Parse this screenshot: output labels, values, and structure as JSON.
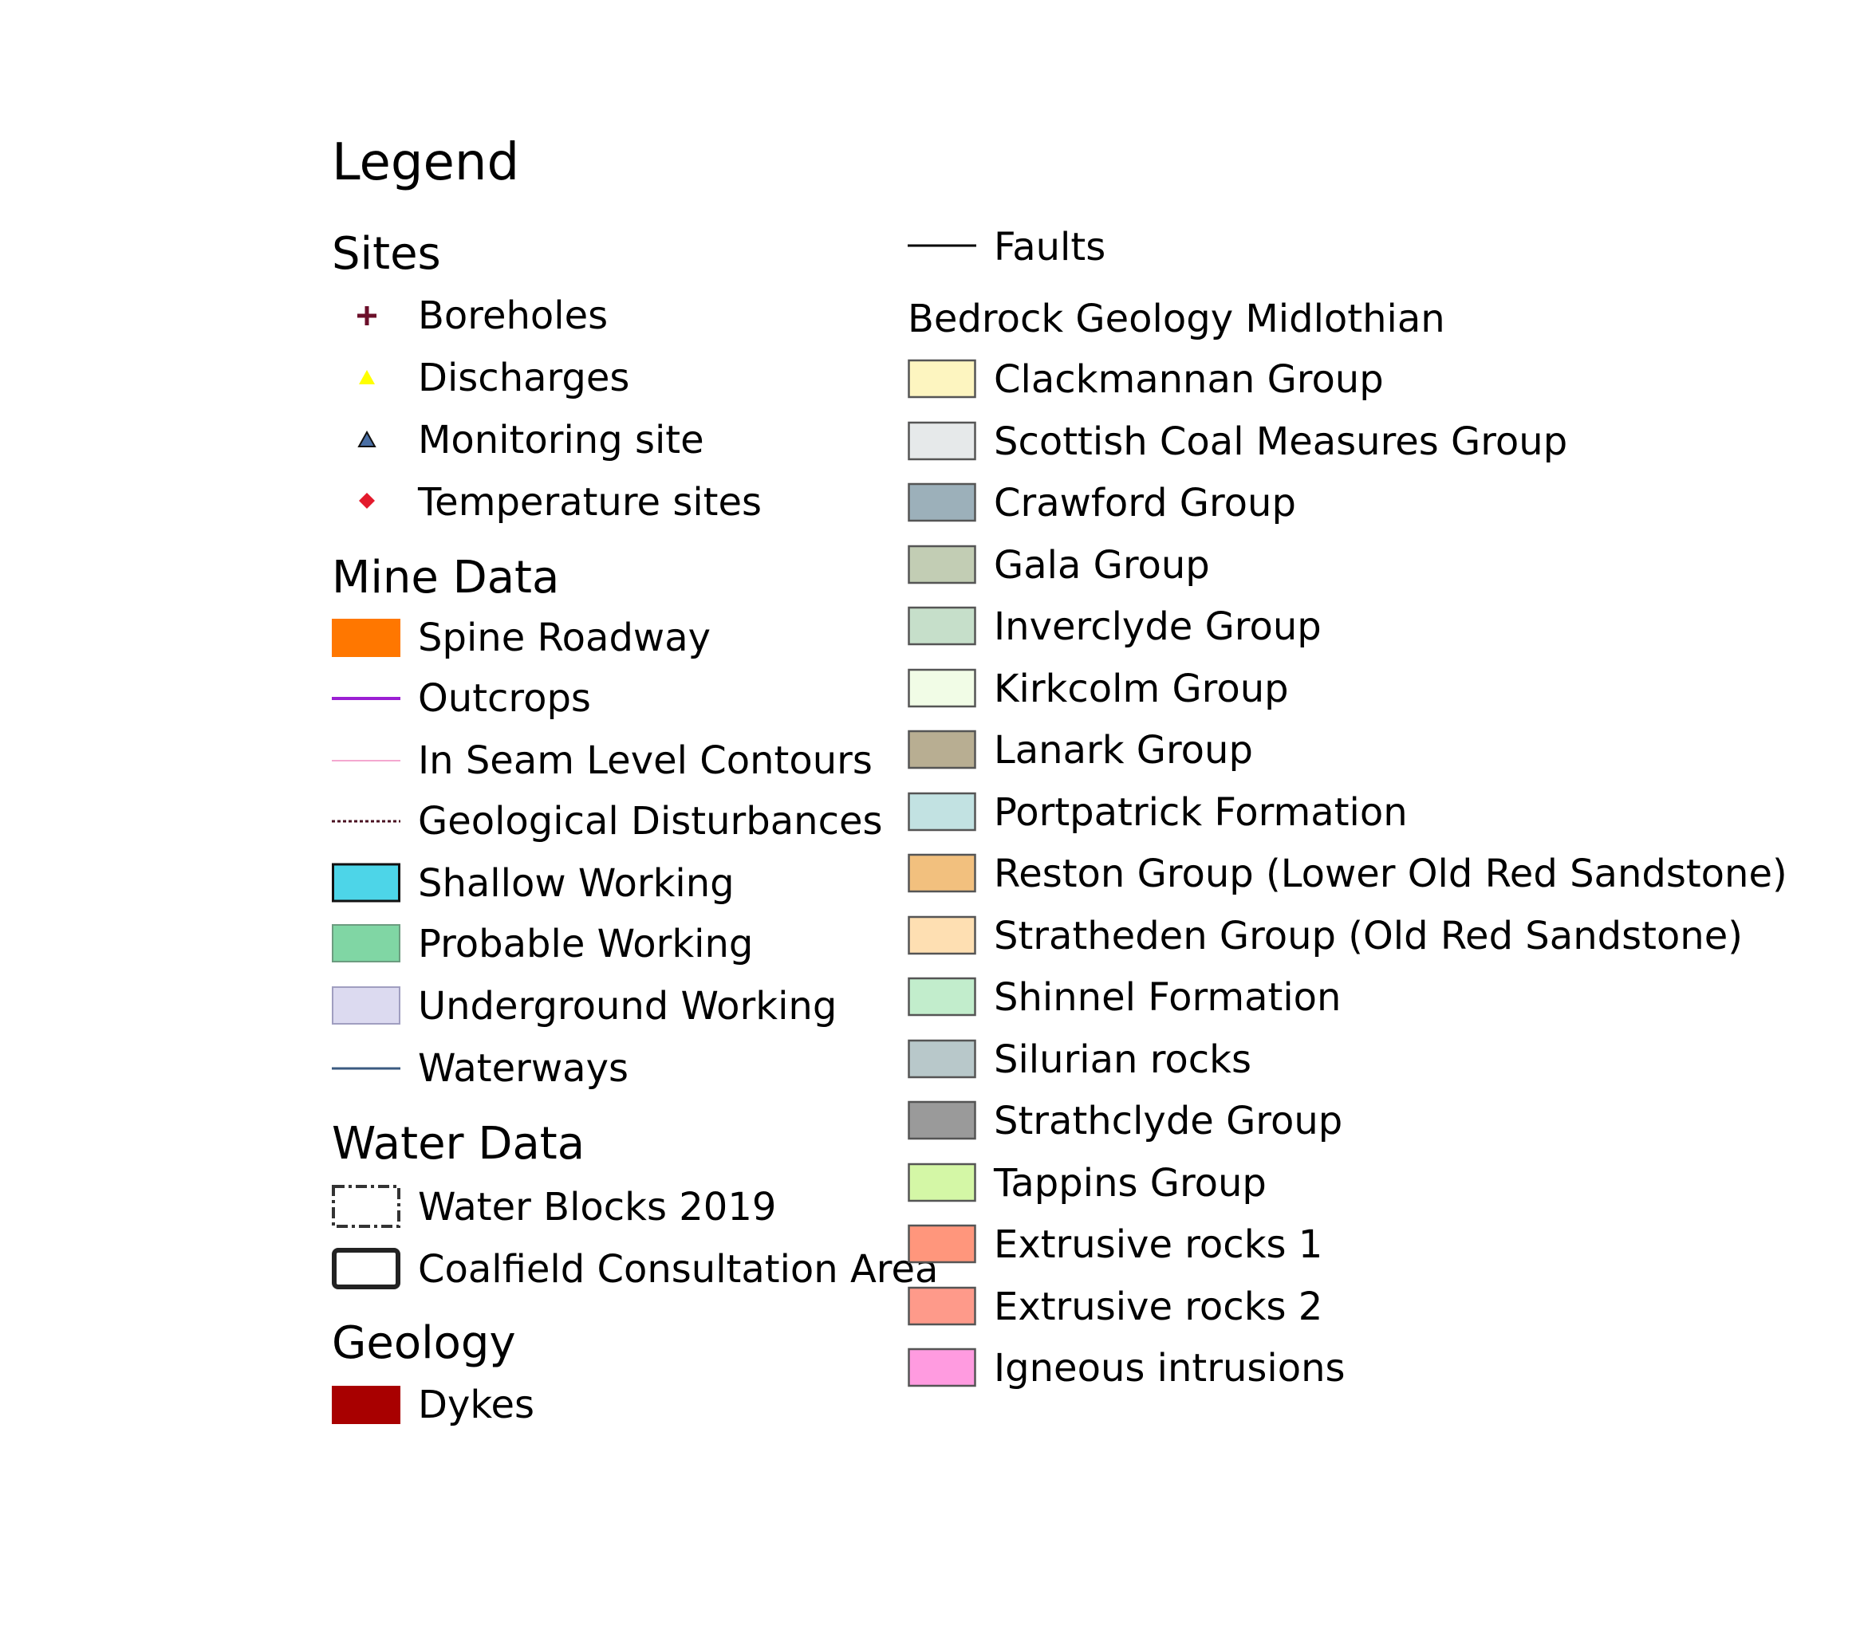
{
  "legend": {
    "title": "Legend",
    "sites": {
      "heading": "Sites",
      "items": [
        {
          "label": "Boreholes",
          "icon": "plus-icon",
          "color": "#6b0f2a"
        },
        {
          "label": "Discharges",
          "icon": "triangle-icon",
          "color": "#ffff00"
        },
        {
          "label": "Monitoring site",
          "icon": "triangle-icon",
          "color": "#4a6fa5"
        },
        {
          "label": "Temperature sites",
          "icon": "diamond-icon",
          "color": "#e31a2c"
        }
      ]
    },
    "mine_data": {
      "heading": "Mine Data",
      "items": [
        {
          "label": "Spine Roadway",
          "icon": "fill-swatch",
          "color": "#ff7700"
        },
        {
          "label": "Outcrops",
          "icon": "line-icon",
          "color": "#9b1fd3"
        },
        {
          "label": "In Seam Level Contours",
          "icon": "line-icon",
          "color": "#f4a8d0"
        },
        {
          "label": "Geological Disturbances",
          "icon": "dotted-line-icon",
          "color": "#4a1020"
        },
        {
          "label": "Shallow Working",
          "icon": "fill-swatch",
          "color": "#4dd5e8"
        },
        {
          "label": "Probable Working",
          "icon": "fill-swatch",
          "color": "#80d6a4"
        },
        {
          "label": "Underground Working",
          "icon": "fill-swatch",
          "color": "#dcdaf0"
        },
        {
          "label": "Waterways",
          "icon": "line-icon",
          "color": "#3b5a80"
        }
      ]
    },
    "water_data": {
      "heading": "Water Data",
      "items": [
        {
          "label": "Water Blocks 2019",
          "icon": "dashed-box-icon",
          "color": "#333333"
        },
        {
          "label": "Coalfield Consultation Area",
          "icon": "outline-box-icon",
          "color": "#222222"
        }
      ]
    },
    "geology": {
      "heading": "Geology",
      "items": [
        {
          "label": "Dykes",
          "icon": "fill-swatch",
          "color": "#a80000"
        }
      ]
    },
    "faults": {
      "label": "Faults",
      "icon": "line-icon",
      "color": "#000000"
    },
    "bedrock": {
      "heading": "Bedrock Geology Midlothian",
      "items": [
        {
          "label": "Clackmannan Group",
          "color": "#fdf5c0"
        },
        {
          "label": "Scottish Coal Measures Group",
          "color": "#e6e9ea"
        },
        {
          "label": "Crawford Group",
          "color": "#9cb0ba"
        },
        {
          "label": "Gala Group",
          "color": "#c2cdb4"
        },
        {
          "label": "Inverclyde Group",
          "color": "#c6dfca"
        },
        {
          "label": "Kirkcolm Group",
          "color": "#f1fce6"
        },
        {
          "label": "Lanark Group",
          "color": "#b8ae92"
        },
        {
          "label": "Portpatrick Formation",
          "color": "#c2e2e2"
        },
        {
          "label": "Reston Group (Lower Old Red Sandstone)",
          "color": "#f2c07e"
        },
        {
          "label": "Stratheden Group (Old Red Sandstone)",
          "color": "#fedfb2"
        },
        {
          "label": "Shinnel Formation",
          "color": "#c2edcc"
        },
        {
          "label": "Silurian rocks",
          "color": "#b8c8ca"
        },
        {
          "label": "Strathclyde Group",
          "color": "#9a9a9a"
        },
        {
          "label": "Tappins Group",
          "color": "#d4f7a6"
        },
        {
          "label": "Extrusive rocks 1",
          "color": "#ff967c"
        },
        {
          "label": "Extrusive rocks 2",
          "color": "#fe9a8a"
        },
        {
          "label": "Igneous intrusions",
          "color": "#ff9be0"
        }
      ]
    }
  }
}
